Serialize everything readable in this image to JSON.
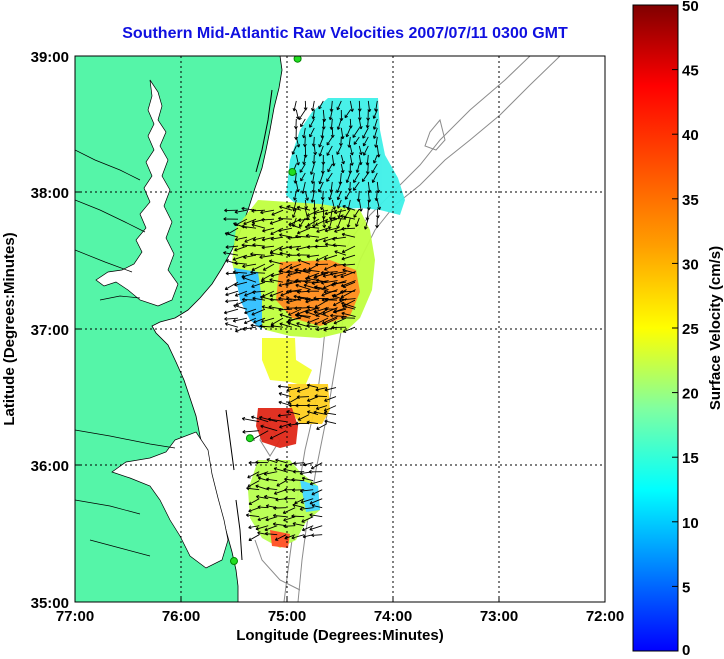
{
  "title": "Southern Mid-Atlantic Raw Velocities 2007/07/11 0300 GMT",
  "x_axis": {
    "label": "Longitude (Degrees:Minutes)",
    "ticks": [
      "77:00",
      "76:00",
      "75:00",
      "74:00",
      "73:00",
      "72:00"
    ]
  },
  "y_axis": {
    "label": "Latitude (Degrees:Minutes)",
    "ticks": [
      "39:00",
      "38:00",
      "37:00",
      "36:00",
      "35:00"
    ]
  },
  "colorbar": {
    "label": "Surface Velocity (cm/s)",
    "ticks": [
      "50",
      "45",
      "40",
      "35",
      "30",
      "25",
      "20",
      "15",
      "10",
      "5",
      "0"
    ],
    "colormap": "jet"
  },
  "colors": {
    "land": "#55f5a8",
    "title": "#1010e0",
    "isobath": "#8c8c8c",
    "station": "#22dd22"
  },
  "chart_data": {
    "type": "heatmap",
    "xlim_deg_west": [
      77,
      72
    ],
    "ylim_deg_north": [
      35,
      39
    ],
    "grid": true,
    "stations_deg": [
      {
        "lon": 74.9,
        "lat": 38.98
      },
      {
        "lon": 74.95,
        "lat": 38.15
      },
      {
        "lon": 75.35,
        "lat": 36.2
      },
      {
        "lon": 75.5,
        "lat": 35.3
      }
    ],
    "velocity_regions": [
      {
        "name": "north",
        "lon": [
          74.1,
          74.95
        ],
        "lat": [
          37.8,
          38.7
        ],
        "speed": 13
      },
      {
        "name": "center",
        "lon": [
          74.3,
          75.5
        ],
        "lat": [
          37.0,
          37.9
        ],
        "speed": 27
      },
      {
        "name": "center-hot",
        "lon": [
          74.35,
          74.9
        ],
        "lat": [
          37.05,
          37.45
        ],
        "speed": 37
      },
      {
        "name": "south-mid",
        "lon": [
          74.5,
          75.0
        ],
        "lat": [
          36.25,
          36.6
        ],
        "speed": 22
      },
      {
        "name": "south-hot",
        "lon": [
          75.0,
          75.3
        ],
        "lat": [
          36.2,
          36.35
        ],
        "speed": 45
      },
      {
        "name": "south",
        "lon": [
          74.6,
          75.3
        ],
        "lat": [
          35.45,
          36.05
        ],
        "speed": 20
      }
    ]
  }
}
